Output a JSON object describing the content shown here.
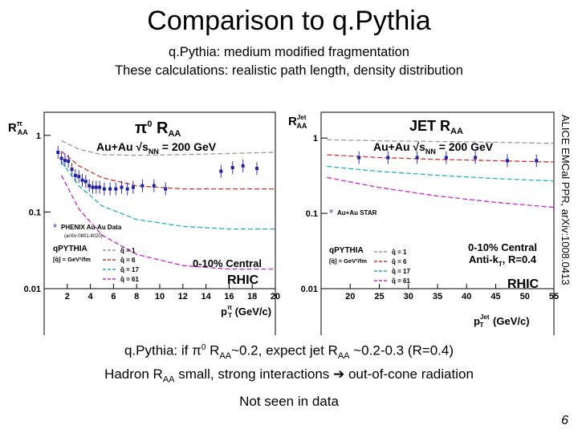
{
  "slide": {
    "title": "Comparison to q.Pythia",
    "subtitle1": "q.Pythia: medium modified fragmentation",
    "subtitle2": "These calculations: realistic path length, density distribution",
    "line1_a": "q.Pythia: if π",
    "line1_b": "0",
    "line1_c": " R",
    "line1_d": "AA",
    "line1_e": "~0.2, expect jet R",
    "line1_f": "AA",
    "line1_g": " ~0.2-0.3 (R=0.4)",
    "line2_a": "Hadron R",
    "line2_b": "AA",
    "line2_c": " small, strong interactions ",
    "line2_arrow": "➔",
    "line2_d": " out-of-cone radiation",
    "line3": "Not seen in data",
    "page_number": "6",
    "side_note": "ALICE EMCal PPR, arXiv:1008.0413"
  },
  "chart_data": [
    {
      "type": "line",
      "ylog": true,
      "xlim": [
        0,
        20
      ],
      "ylim": [
        0.01,
        2
      ],
      "xticks": [
        2,
        4,
        6,
        8,
        10,
        12,
        14,
        16,
        18,
        20
      ],
      "yticks": [
        {
          "v": 0.01,
          "label": "0.01"
        },
        {
          "v": 0.1,
          "label": "0.1"
        },
        {
          "v": 1,
          "label": "1"
        }
      ],
      "ylabel": "R",
      "ylabel_sup": "π",
      "ylabel_sub": "AA",
      "xlabel": "p",
      "xlabel_sup": "π",
      "xlabel_sub": "T",
      "xlabel_unit": " (GeV/c)",
      "title_a": "π",
      "title_sup": "0",
      "title_b": " R",
      "title_sub": "AA",
      "system_a": "Au+Au ",
      "system_sqrt": "√",
      "system_s": "s",
      "system_sub": "NN",
      "system_b": " = 200 GeV",
      "data_label": "PHENIX Au-Au Data",
      "data_ref": "(arXiv:0801.4020)",
      "model_label": "qPYTHIA",
      "model_unit": "[q̂] = GeV²/fm",
      "centrality": "0-10% Central",
      "facility": "RHIC",
      "series": [
        {
          "name": "q̂ = 1",
          "color": "#999999",
          "x": [
            1.5,
            3,
            5,
            8,
            12,
            16,
            20
          ],
          "y": [
            0.85,
            0.66,
            0.56,
            0.55,
            0.56,
            0.58,
            0.6
          ]
        },
        {
          "name": "q̂ = 6",
          "color": "#d93030",
          "x": [
            1.5,
            3,
            5,
            8,
            12,
            16,
            20
          ],
          "y": [
            0.62,
            0.4,
            0.28,
            0.22,
            0.2,
            0.2,
            0.2
          ]
        },
        {
          "name": "q̂ = 17",
          "color": "#20b0c0",
          "x": [
            1.5,
            3,
            5,
            8,
            12,
            16,
            20
          ],
          "y": [
            0.45,
            0.22,
            0.12,
            0.08,
            0.065,
            0.06,
            0.06
          ]
        },
        {
          "name": "q̂ = 61",
          "color": "#d020d0",
          "x": [
            1.5,
            3,
            5,
            8,
            12,
            16,
            20
          ],
          "y": [
            0.3,
            0.11,
            0.05,
            0.028,
            0.02,
            0.018,
            0.018
          ]
        }
      ],
      "points": {
        "x": [
          1.2,
          1.5,
          1.8,
          2.1,
          2.4,
          2.7,
          3.0,
          3.3,
          3.6,
          3.9,
          4.2,
          4.5,
          4.8,
          5.2,
          5.7,
          6.2,
          6.7,
          7.2,
          7.7,
          8.5,
          9.5,
          10.5,
          15.3,
          16.3,
          17.2,
          18.4
        ],
        "y": [
          0.6,
          0.5,
          0.47,
          0.46,
          0.36,
          0.3,
          0.29,
          0.26,
          0.25,
          0.22,
          0.21,
          0.21,
          0.21,
          0.2,
          0.2,
          0.2,
          0.21,
          0.2,
          0.21,
          0.22,
          0.22,
          0.2,
          0.34,
          0.38,
          0.4,
          0.37
        ]
      }
    },
    {
      "type": "line",
      "ylog": true,
      "xlim": [
        15,
        55
      ],
      "ylim": [
        0.01,
        2.2
      ],
      "xticks": [
        20,
        25,
        30,
        35,
        40,
        45,
        50,
        55
      ],
      "yticks": [
        {
          "v": 0.01,
          "label": "0.01"
        },
        {
          "v": 0.1,
          "label": "0.1"
        },
        {
          "v": 1,
          "label": "1"
        }
      ],
      "ylabel": "R",
      "ylabel_sup": "Jet",
      "ylabel_sub": "AA",
      "xlabel": "p",
      "xlabel_sup": "Jet",
      "xlabel_sub": "T",
      "xlabel_unit": " (GeV/c)",
      "title_a": "JET R",
      "title_sub": "AA",
      "system_a": "Au+Au ",
      "system_sqrt": "√",
      "system_s": "s",
      "system_sub": "NN",
      "system_b": " = 200 GeV",
      "data_label": "Au+Au STAR",
      "model_label": "qPYTHIA",
      "model_unit": "[q̂] = GeV²/fm",
      "centrality": "0-10% Central",
      "algo_a": "Anti-k",
      "algo_sub": "T",
      "algo_b": ", R=0.4",
      "facility": "RHIC",
      "series": [
        {
          "name": "q̂ = 1",
          "color": "#999999",
          "x": [
            16,
            25,
            35,
            45,
            55
          ],
          "y": [
            0.95,
            0.92,
            0.9,
            0.88,
            0.85
          ]
        },
        {
          "name": "q̂ = 6",
          "color": "#d93030",
          "x": [
            16,
            25,
            35,
            45,
            55
          ],
          "y": [
            0.6,
            0.55,
            0.52,
            0.5,
            0.48
          ]
        },
        {
          "name": "q̂ = 17",
          "color": "#20b0c0",
          "x": [
            16,
            25,
            35,
            45,
            55
          ],
          "y": [
            0.42,
            0.36,
            0.32,
            0.29,
            0.27
          ]
        },
        {
          "name": "q̂ = 61",
          "color": "#d020d0",
          "x": [
            16,
            25,
            35,
            45,
            55
          ],
          "y": [
            0.3,
            0.22,
            0.17,
            0.14,
            0.12
          ]
        }
      ],
      "points": {
        "x": [
          21.5,
          26.5,
          31.5,
          36.5,
          41.5,
          47,
          52
        ],
        "y": [
          0.55,
          0.55,
          0.55,
          0.55,
          0.55,
          0.5,
          0.5
        ]
      }
    }
  ]
}
